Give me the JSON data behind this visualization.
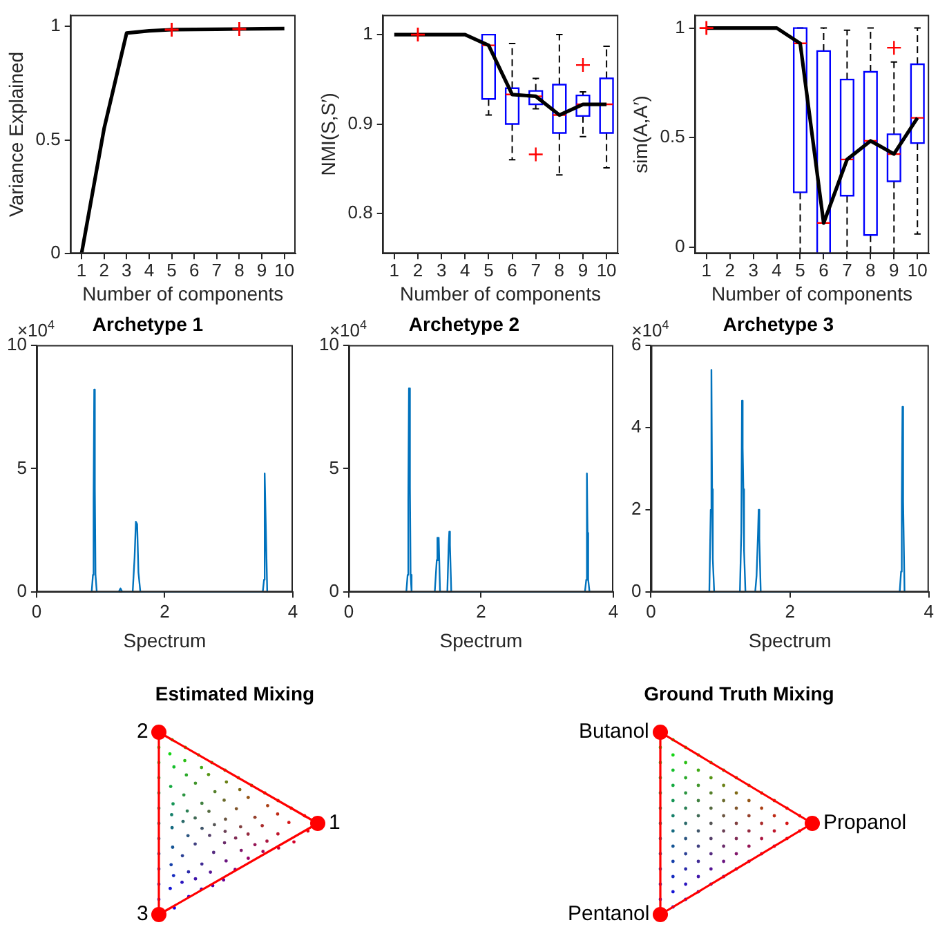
{
  "chart_data": [
    {
      "type": "line",
      "categories": [
        "1",
        "2",
        "3",
        "4",
        "5",
        "6",
        "7",
        "8",
        "9",
        "10"
      ],
      "xlabel": "Number of components",
      "ylabel": "Variance Explained",
      "ylim": [
        0,
        1.05
      ],
      "yticks": [
        0,
        0.5,
        1
      ],
      "series": [
        {
          "type": "line",
          "color": "#000000",
          "values": [
            0,
            0.55,
            0.97,
            0.98,
            0.985,
            0.986,
            0.987,
            0.988,
            0.989,
            0.99
          ]
        },
        {
          "type": "scatter",
          "color": "#ff0000",
          "marker": "cross",
          "x": [
            "5",
            "8"
          ],
          "values": [
            0.985,
            0.988
          ]
        }
      ]
    },
    {
      "type": "box",
      "categories": [
        "1",
        "2",
        "3",
        "4",
        "5",
        "6",
        "7",
        "8",
        "9",
        "10"
      ],
      "xlabel": "Number of components",
      "ylabel": "NMI(S,S′)",
      "ylim": [
        0.755,
        1.022
      ],
      "yticks": [
        0.8,
        0.9,
        1
      ],
      "series": [
        {
          "type": "box",
          "color": "#0000ff",
          "boxes": [
            null,
            null,
            null,
            null,
            {
              "low": 0.91,
              "q1": 0.928,
              "median": 0.988,
              "q3": 1,
              "high": 1
            },
            {
              "low": 0.86,
              "q1": 0.9,
              "median": 0.933,
              "q3": 0.94,
              "high": 0.99
            },
            {
              "low": 0.917,
              "q1": 0.922,
              "median": 0.931,
              "q3": 0.937,
              "high": 0.951,
              "outliers": [
                0.866
              ]
            },
            {
              "low": 0.843,
              "q1": 0.89,
              "median": 0.91,
              "q3": 0.944,
              "high": 1
            },
            {
              "low": 0.886,
              "q1": 0.909,
              "median": 0.922,
              "q3": 0.932,
              "high": 0.936,
              "outliers": [
                0.966
              ]
            },
            {
              "low": 0.851,
              "q1": 0.89,
              "median": 0.922,
              "q3": 0.951,
              "high": 0.987
            }
          ]
        },
        {
          "type": "line",
          "color": "#000000",
          "values": [
            1,
            1,
            1,
            1,
            0.988,
            0.933,
            0.931,
            0.91,
            0.922,
            0.922
          ]
        },
        {
          "type": "scatter",
          "color": "#ff0000",
          "marker": "cross",
          "x": [
            "2"
          ],
          "values": [
            1
          ]
        }
      ]
    },
    {
      "type": "box",
      "categories": [
        "1",
        "2",
        "3",
        "4",
        "5",
        "6",
        "7",
        "8",
        "9",
        "10"
      ],
      "xlabel": "Number of components",
      "ylabel": "sim(A,A′)",
      "ylim": [
        -0.03,
        1.06
      ],
      "yticks": [
        0,
        0.5,
        1
      ],
      "series": [
        {
          "type": "box",
          "color": "#0000ff",
          "boxes": [
            null,
            null,
            null,
            null,
            {
              "low": -0.03,
              "q1": 0.25,
              "median": 0.93,
              "q3": 1,
              "high": 1
            },
            {
              "low": -0.03,
              "q1": -0.03,
              "median": 0.11,
              "q3": 0.895,
              "high": 1
            },
            {
              "low": -0.03,
              "q1": 0.235,
              "median": 0.4,
              "q3": 0.765,
              "high": 0.99
            },
            {
              "low": -0.03,
              "q1": 0.055,
              "median": 0.485,
              "q3": 0.8,
              "high": 1
            },
            {
              "low": -0.03,
              "q1": 0.3,
              "median": 0.425,
              "q3": 0.515,
              "high": 0.845,
              "outliers": [
                0.91
              ]
            },
            {
              "low": 0.06,
              "q1": 0.475,
              "median": 0.59,
              "q3": 0.835,
              "high": 1
            }
          ]
        },
        {
          "type": "line",
          "color": "#000000",
          "values": [
            1,
            1,
            1,
            1,
            0.93,
            0.11,
            0.4,
            0.485,
            0.425,
            0.59
          ]
        },
        {
          "type": "scatter",
          "color": "#ff0000",
          "marker": "cross",
          "x": [
            "1"
          ],
          "values": [
            1
          ]
        }
      ]
    },
    {
      "type": "line",
      "title": "Archetype 1",
      "xlabel": "Spectrum",
      "annotations": [
        "×10$^{4}$"
      ],
      "xlim": [
        0,
        4
      ],
      "xticks": [
        0,
        2,
        4
      ],
      "ylim": [
        0,
        10
      ],
      "yticks": [
        0,
        5,
        10
      ],
      "x": [
        0.86,
        0.88,
        0.89,
        0.9,
        0.91,
        0.92,
        0.94,
        1.28,
        1.31,
        1.34,
        1.5,
        1.53,
        1.55,
        1.57,
        1.59,
        1.62,
        3.53,
        3.55,
        3.56,
        3.58,
        3.6
      ],
      "series": [
        {
          "color": "#0072bd",
          "values": [
            0,
            0.7,
            3.8,
            8.2,
            4.2,
            0.7,
            0,
            0,
            0.15,
            0,
            0,
            1.4,
            2.85,
            2.75,
            0.8,
            0,
            0,
            0.5,
            4.8,
            2.4,
            0
          ]
        }
      ]
    },
    {
      "type": "line",
      "title": "Archetype 2",
      "xlabel": "Spectrum",
      "annotations": [
        "×10$^{4}$"
      ],
      "xlim": [
        0,
        4
      ],
      "xticks": [
        0,
        2,
        4
      ],
      "ylim": [
        0,
        10
      ],
      "yticks": [
        0,
        5,
        10
      ],
      "x": [
        0.87,
        0.89,
        0.9,
        0.91,
        0.925,
        0.935,
        0.95,
        1.3,
        1.33,
        1.34,
        1.35,
        1.36,
        1.38,
        1.49,
        1.51,
        1.52,
        1.53,
        1.55,
        3.57,
        3.59,
        3.6,
        3.61,
        3.62,
        3.64
      ],
      "series": [
        {
          "color": "#0072bd",
          "values": [
            0,
            0.7,
            3.7,
            8.25,
            4.25,
            0.7,
            0,
            0,
            1.3,
            2.2,
            1.3,
            2.2,
            0,
            0,
            1.9,
            2.45,
            1.9,
            0,
            0,
            0.5,
            4.8,
            2.4,
            0.5,
            0
          ]
        }
      ]
    },
    {
      "type": "line",
      "title": "Archetype 3",
      "xlabel": "Spectrum",
      "annotations": [
        "×10$^{4}$"
      ],
      "xlim": [
        0,
        4
      ],
      "xticks": [
        0,
        2,
        4
      ],
      "ylim": [
        0,
        6
      ],
      "yticks": [
        0,
        2,
        4,
        6
      ],
      "x": [
        0.84,
        0.86,
        0.87,
        0.88,
        0.89,
        0.91,
        1.28,
        1.3,
        1.31,
        1.32,
        1.33,
        1.34,
        1.36,
        1.5,
        1.52,
        1.54,
        1.55,
        1.56,
        1.58,
        3.58,
        3.6,
        3.61,
        3.62,
        3.63,
        3.65
      ],
      "series": [
        {
          "color": "#0072bd",
          "values": [
            0,
            2,
            5.4,
            2.5,
            0.8,
            0,
            0,
            1.45,
            4.65,
            3.5,
            2.5,
            1,
            0,
            0,
            0.4,
            1.4,
            2,
            1.3,
            0,
            0,
            0.5,
            2.2,
            4.5,
            2.2,
            0
          ]
        }
      ]
    },
    {
      "type": "other",
      "title": "Estimated Mixing",
      "annotations": [
        "1",
        "2",
        "3"
      ]
    },
    {
      "type": "other",
      "title": "Ground Truth Mixing",
      "annotations": [
        "Propanol",
        "Butanol",
        "Pentanol"
      ]
    }
  ]
}
